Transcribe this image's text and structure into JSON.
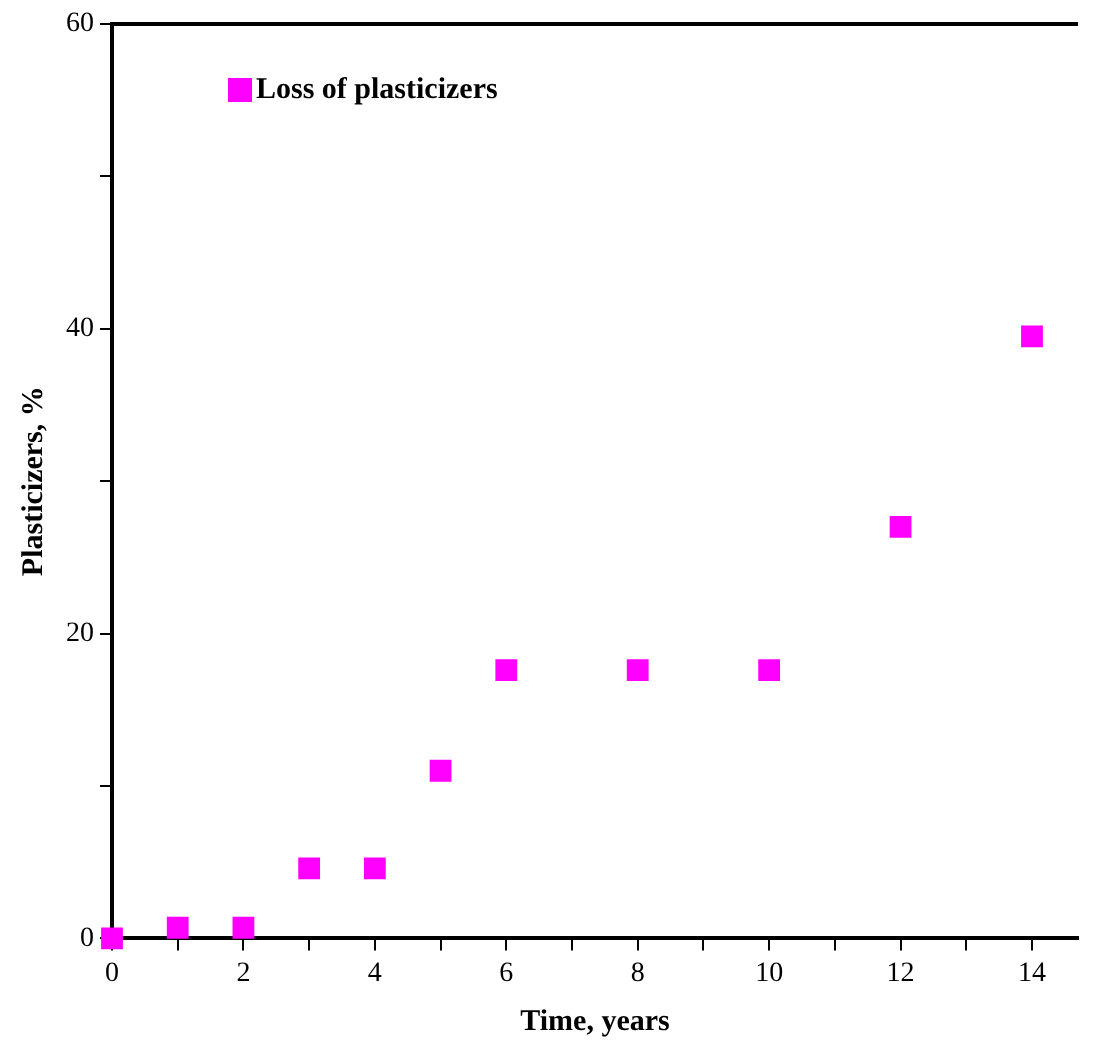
{
  "chart_data": {
    "type": "scatter",
    "xlabel": "Time, years",
    "ylabel": "Plasticizers, %",
    "x": [
      0,
      1,
      2,
      3,
      4,
      5,
      6,
      8,
      10,
      12,
      14
    ],
    "series": [
      {
        "name": "Loss of plasticizers",
        "color": "#ff00ff",
        "values": [
          0,
          0.7,
          0.7,
          4.6,
          4.6,
          11,
          17.6,
          17.6,
          17.6,
          27,
          39.5
        ]
      }
    ],
    "xlim": [
      0,
      14.7
    ],
    "xticks": [
      0,
      {
        "value": 1,
        "label": null
      },
      2,
      {
        "value": 3,
        "label": null
      },
      4,
      {
        "value": 5,
        "label": null
      },
      6,
      {
        "value": 7,
        "label": null
      },
      8,
      {
        "value": 9,
        "label": null
      },
      10,
      {
        "value": 11,
        "label": null
      },
      12,
      {
        "value": 13,
        "label": null
      },
      14
    ],
    "ylim": [
      0,
      60
    ],
    "yticks": [
      0,
      {
        "value": 10,
        "label": null
      },
      20,
      {
        "value": 30,
        "label": null
      },
      40,
      {
        "value": 50,
        "label": null
      },
      60
    ],
    "grid": false,
    "legend": "top left",
    "marker": "square"
  }
}
